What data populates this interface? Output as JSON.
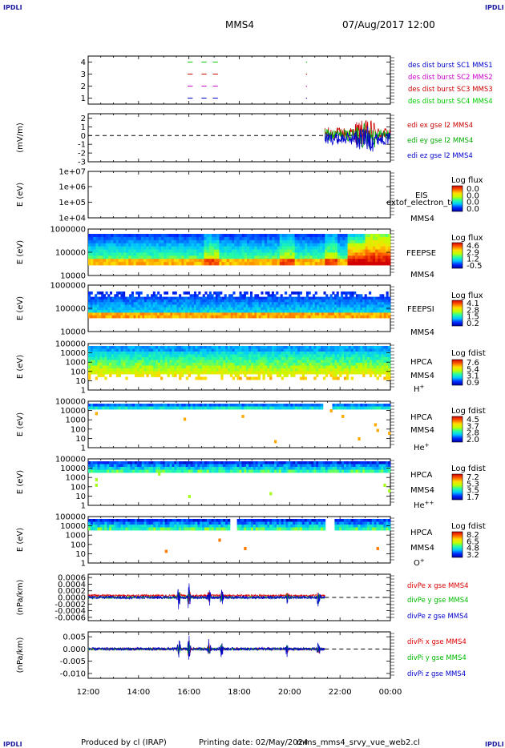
{
  "header": {
    "spacecraft": "MMS4",
    "datetime": "07/Aug/2017 12:00",
    "corner": "IPDLI"
  },
  "footer": {
    "produced_by": "Produced by cl (IRAP)",
    "printing_date": "Printing date: 02/May/2024",
    "filename": "mms_mms4_srvy_vue_web2.cl"
  },
  "time_axis": {
    "ticks": [
      "12:00",
      "14:00",
      "16:00",
      "18:00",
      "20:00",
      "22:00",
      "00:00"
    ],
    "range_hours": [
      12,
      24
    ]
  },
  "chart_data": [
    {
      "type": "scatter",
      "id": "burst",
      "ylabel": "",
      "yticks": [
        "1",
        "2",
        "3",
        "4"
      ],
      "ylim": [
        0.5,
        4.5
      ],
      "series": [
        {
          "name": "des dist burst SC1 MMS1",
          "color": "#0000cc",
          "y": 1,
          "segments": [
            [
              15.95,
              16.15
            ],
            [
              16.5,
              16.7
            ],
            [
              16.95,
              17.15
            ]
          ],
          "dots": [
            20.65
          ]
        },
        {
          "name": "des dist burst SC2 MMS2",
          "color": "#cc00cc",
          "y": 2,
          "segments": [
            [
              15.95,
              16.15
            ],
            [
              16.5,
              16.7
            ],
            [
              16.95,
              17.15
            ]
          ],
          "dots": [
            20.65
          ]
        },
        {
          "name": "des dist burst SC3 MMS3",
          "color": "#cc0000",
          "y": 3,
          "segments": [
            [
              15.95,
              16.15
            ],
            [
              16.5,
              16.7
            ],
            [
              16.95,
              17.15
            ]
          ],
          "dots": [
            20.65
          ]
        },
        {
          "name": "des dist burst SC4 MMS4",
          "color": "#00cc00",
          "y": 4,
          "segments": [
            [
              15.95,
              16.15
            ],
            [
              16.5,
              16.7
            ],
            [
              16.95,
              17.15
            ]
          ],
          "dots": [
            20.65
          ]
        }
      ]
    },
    {
      "type": "line",
      "id": "edi",
      "ylabel": "(mV/m)",
      "yticks": [
        "-3",
        "-2",
        "-1",
        "0",
        "1",
        "2"
      ],
      "ylim": [
        -3,
        2.5
      ],
      "data_start_hour": 21.4,
      "series": [
        {
          "name": "edi ex gse l2 MMS4",
          "color": "#cc0000"
        },
        {
          "name": "edi ey gse l2 MMS4",
          "color": "#00aa00"
        },
        {
          "name": "edi ez gse l2 MMS4",
          "color": "#0000cc"
        }
      ]
    },
    {
      "type": "heatmap",
      "id": "eis",
      "ylabel": "E (eV)",
      "yticks": [
        "1e+04",
        "1e+05",
        "1e+06",
        "1e+07"
      ],
      "instrument": "EIS",
      "spacecraft": "MMS4",
      "colorbar_title": "Log flux",
      "colorbar_ticks": [
        "0.0",
        "0.0",
        "0.0",
        "0.0"
      ],
      "overlay_text": "extof_electron_to"
    },
    {
      "type": "heatmap",
      "id": "feepse",
      "ylabel": "E (eV)",
      "yticks": [
        "10000",
        "100000",
        "1000000"
      ],
      "instrument": "FEEPSE",
      "spacecraft": "MMS4",
      "colorbar_title": "Log flux",
      "colorbar_ticks": [
        "4.6",
        "2.9",
        "1.2",
        "-0.5"
      ]
    },
    {
      "type": "heatmap",
      "id": "feepsi",
      "ylabel": "E (eV)",
      "yticks": [
        "10000",
        "100000",
        "1000000"
      ],
      "instrument": "FEEPSI",
      "spacecraft": "MMS4",
      "colorbar_title": "Log flux",
      "colorbar_ticks": [
        "4.1",
        "2.8",
        "1.5",
        "0.2"
      ]
    },
    {
      "type": "heatmap",
      "id": "hpca_h",
      "ylabel": "E (eV)",
      "yticks": [
        "1",
        "10",
        "100",
        "1000",
        "10000",
        "100000"
      ],
      "instrument": "HPCA",
      "spacecraft": "MMS4",
      "species": "H",
      "species_charge": "+",
      "colorbar_title": "Log fdist",
      "colorbar_ticks": [
        "7.6",
        "5.4",
        "3.1",
        "0.9"
      ]
    },
    {
      "type": "heatmap",
      "id": "hpca_he",
      "ylabel": "E (eV)",
      "yticks": [
        "1",
        "10",
        "100",
        "1000",
        "10000",
        "100000"
      ],
      "instrument": "HPCA",
      "spacecraft": "MMS4",
      "species": "He",
      "species_charge": "+",
      "colorbar_title": "Log fdist",
      "colorbar_ticks": [
        "4.5",
        "3.7",
        "2.8",
        "2.0"
      ]
    },
    {
      "type": "heatmap",
      "id": "hpca_hepp",
      "ylabel": "E (eV)",
      "yticks": [
        "1",
        "10",
        "100",
        "1000",
        "10000",
        "100000"
      ],
      "instrument": "HPCA",
      "spacecraft": "MMS4",
      "species": "He",
      "species_charge": "++",
      "colorbar_title": "Log fdist",
      "colorbar_ticks": [
        "7.2",
        "5.3",
        "3.5",
        "1.7"
      ]
    },
    {
      "type": "heatmap",
      "id": "hpca_o",
      "ylabel": "E (eV)",
      "yticks": [
        "1",
        "10",
        "100",
        "1000",
        "10000",
        "100000"
      ],
      "instrument": "HPCA",
      "spacecraft": "MMS4",
      "species": "O",
      "species_charge": "+",
      "colorbar_title": "Log fdist",
      "colorbar_ticks": [
        "8.2",
        "6.5",
        "4.8",
        "3.2"
      ]
    },
    {
      "type": "line",
      "id": "divpe",
      "ylabel": "(nPa/km)",
      "yticks": [
        "-0.0006",
        "-0.0004",
        "-0.0002",
        "0.0000",
        "0.0002",
        "0.0004",
        "0.0006"
      ],
      "ylim": [
        -0.0007,
        0.0007
      ],
      "data_end_hour": 21.4,
      "series": [
        {
          "name": "divPe x gse MMS4",
          "color": "#dd0000"
        },
        {
          "name": "divPe y gse MMS4",
          "color": "#00bb00"
        },
        {
          "name": "divPe z gse MMS4",
          "color": "#0000cc"
        }
      ]
    },
    {
      "type": "line",
      "id": "divpi",
      "ylabel": "(nPa/km)",
      "yticks": [
        "-0.010",
        "-0.005",
        "0.000",
        "0.005"
      ],
      "ylim": [
        -0.012,
        0.007
      ],
      "data_end_hour": 21.4,
      "series": [
        {
          "name": "divPi x gse MMS4",
          "color": "#dd0000"
        },
        {
          "name": "divPi y gse MMS4",
          "color": "#00bb00"
        },
        {
          "name": "divPi z gse MMS4",
          "color": "#0000cc"
        }
      ]
    }
  ]
}
